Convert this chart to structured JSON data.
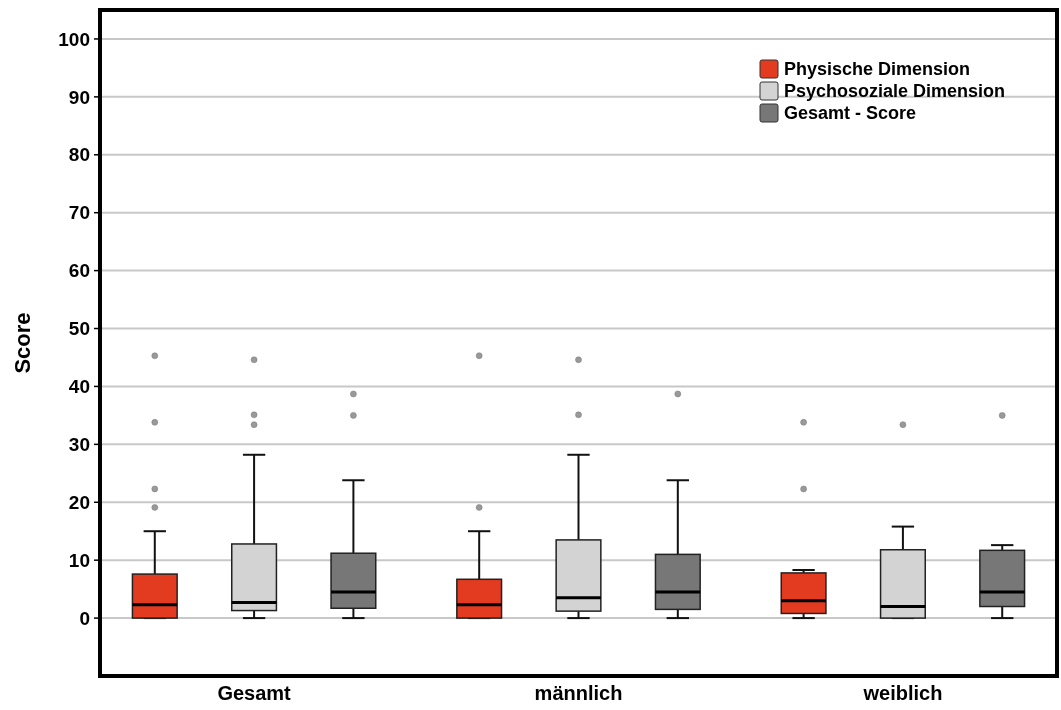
{
  "chart_data": {
    "type": "box",
    "ylabel": "Score",
    "categories": [
      "Gesamt",
      "männlich",
      "weiblich"
    ],
    "ylim": [
      -10,
      105
    ],
    "yticks": [
      0,
      10,
      20,
      30,
      40,
      50,
      60,
      70,
      80,
      90,
      100
    ],
    "grid": "y",
    "legend": "top right",
    "series": [
      {
        "name": "Physische Dimension",
        "color": "#e23b20",
        "boxes": [
          {
            "low": 0,
            "q1": 0,
            "median": 2.3,
            "q3": 7.6,
            "high": 15,
            "outliers": [
              45.3,
              33.8,
              22.3,
              19.1
            ]
          },
          {
            "low": 0,
            "q1": 0,
            "median": 2.3,
            "q3": 6.7,
            "high": 15,
            "outliers": [
              45.3,
              19.1
            ]
          },
          {
            "low": 0,
            "q1": 0.8,
            "median": 3,
            "q3": 7.8,
            "high": 8.3,
            "outliers": [
              33.8,
              22.3
            ]
          }
        ]
      },
      {
        "name": "Psychosoziale Dimension",
        "color": "#d3d3d3",
        "boxes": [
          {
            "low": 0,
            "q1": 1.3,
            "median": 2.7,
            "q3": 12.8,
            "high": 28.2,
            "outliers": [
              44.6,
              35.1,
              33.4
            ]
          },
          {
            "low": 0,
            "q1": 1.2,
            "median": 3.5,
            "q3": 13.5,
            "high": 28.2,
            "outliers": [
              44.6,
              35.1
            ]
          },
          {
            "low": 0,
            "q1": 0,
            "median": 2,
            "q3": 11.8,
            "high": 15.8,
            "outliers": [
              33.4
            ]
          }
        ]
      },
      {
        "name": "Gesamt - Score",
        "color": "#777777",
        "boxes": [
          {
            "low": 0,
            "q1": 1.7,
            "median": 4.5,
            "q3": 11.2,
            "high": 23.8,
            "outliers": [
              38.7,
              35
            ]
          },
          {
            "low": 0,
            "q1": 1.5,
            "median": 4.5,
            "q3": 11,
            "high": 23.8,
            "outliers": [
              38.7
            ]
          },
          {
            "low": 0,
            "q1": 2,
            "median": 4.5,
            "q3": 11.7,
            "high": 12.6,
            "outliers": [
              35
            ]
          }
        ]
      }
    ]
  }
}
